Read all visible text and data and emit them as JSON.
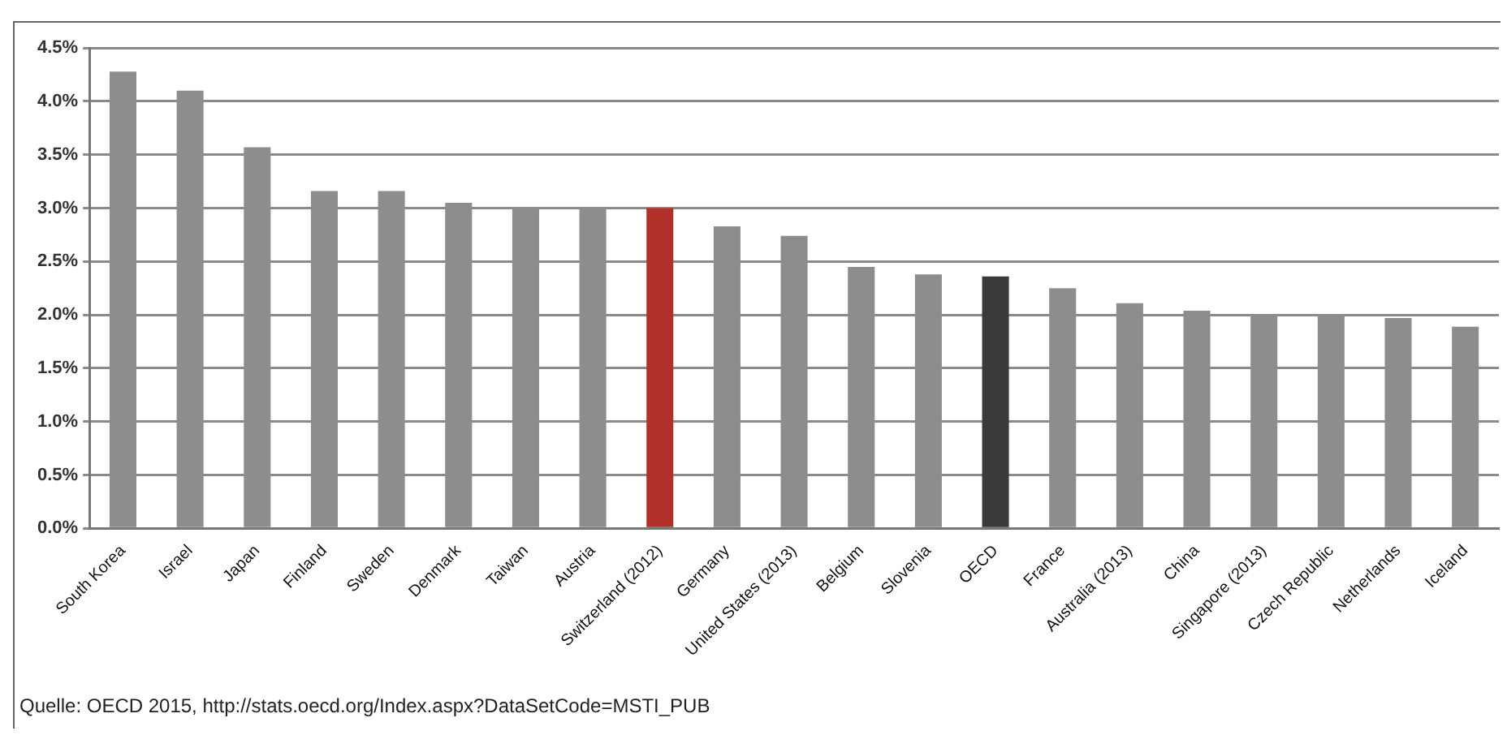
{
  "chart_data": {
    "type": "bar",
    "categories": [
      "South Korea",
      "Israel",
      "Japan",
      "Finland",
      "Sweden",
      "Denmark",
      "Taiwan",
      "Austria",
      "Switzerland (2012)",
      "Germany",
      "United States (2013)",
      "Belgium",
      "Slovenia",
      "OECD",
      "France",
      "Australia (2013)",
      "China",
      "Singapore (2013)",
      "Czech Republic",
      "Netherlands",
      "Iceland"
    ],
    "values": [
      4.28,
      4.1,
      3.57,
      3.16,
      3.16,
      3.05,
      3.0,
      3.0,
      3.0,
      2.83,
      2.74,
      2.45,
      2.38,
      2.36,
      2.25,
      2.11,
      2.04,
      2.0,
      2.0,
      1.97,
      1.89
    ],
    "colors": [
      "#8e8c8f",
      "#8e8c8f",
      "#8e8c8f",
      "#8e8c8f",
      "#8e8c8f",
      "#8e8c8f",
      "#8e8c8f",
      "#8e8c8f",
      "#b0302a",
      "#8e8c8f",
      "#8e8c8f",
      "#8e8c8f",
      "#8e8c8f",
      "#3a3a3a",
      "#8e8c8f",
      "#8e8c8f",
      "#8e8c8f",
      "#8e8c8f",
      "#8e8c8f",
      "#8e8c8f",
      "#8e8c8f"
    ],
    "ylim": [
      0,
      4.5
    ],
    "yticks": [
      {
        "value": 0,
        "label": "0.0%"
      },
      {
        "value": 0.5,
        "label": "0.5%"
      },
      {
        "value": 1,
        "label": "1.0%"
      },
      {
        "value": 1.5,
        "label": "1.5%"
      },
      {
        "value": 2,
        "label": "2.0%"
      },
      {
        "value": 2.5,
        "label": "2.5%"
      },
      {
        "value": 3,
        "label": "3.0%"
      },
      {
        "value": 3.5,
        "label": "3.5%"
      },
      {
        "value": 4,
        "label": "4.0%"
      },
      {
        "value": 4.5,
        "label": "4.5%"
      }
    ],
    "grid": "y",
    "annotations": [
      "Quelle: OECD 2015, http://stats.oecd.org/Index.aspx?DataSetCode=MSTI_PUB"
    ]
  }
}
